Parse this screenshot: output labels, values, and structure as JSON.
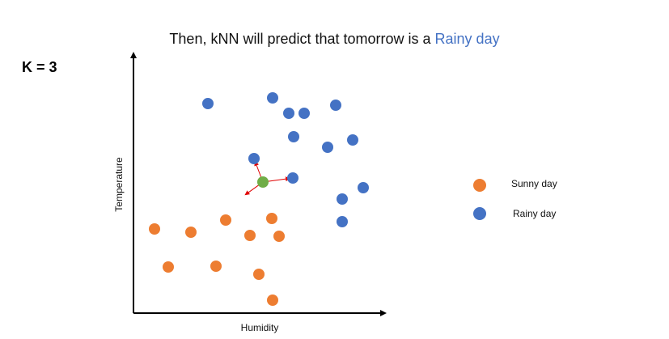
{
  "title": {
    "prefix": "Then, kNN will predict that tomorrow is a ",
    "highlight": "Rainy day",
    "highlight_color": "#4472c4"
  },
  "k_label": "K = 3",
  "chart_data": {
    "type": "scatter",
    "xlabel": "Humidity",
    "ylabel": "Temperature",
    "xlim": [
      0,
      310
    ],
    "ylim": [
      0,
      320
    ],
    "grid": false,
    "legend_placement": "right",
    "series": [
      {
        "name": "Sunny day",
        "color": "#ed7d31",
        "points": [
          [
            26,
            104
          ],
          [
            71,
            100
          ],
          [
            43,
            57
          ],
          [
            102,
            58
          ],
          [
            114,
            115
          ],
          [
            144,
            96
          ],
          [
            155,
            48
          ],
          [
            171,
            117
          ],
          [
            180,
            95
          ],
          [
            172,
            16
          ]
        ]
      },
      {
        "name": "Rainy day",
        "color": "#4472c4",
        "points": [
          [
            92,
            259
          ],
          [
            172,
            266
          ],
          [
            192,
            247
          ],
          [
            211,
            247
          ],
          [
            250,
            257
          ],
          [
            198,
            218
          ],
          [
            240,
            205
          ],
          [
            271,
            214
          ],
          [
            149,
            191
          ],
          [
            197,
            167
          ],
          [
            258,
            141
          ],
          [
            284,
            155
          ],
          [
            258,
            113
          ]
        ]
      }
    ],
    "query_point": {
      "x": 160,
      "y": 162,
      "color": "#70ad47"
    },
    "neighbors": [
      [
        149,
        191
      ],
      [
        197,
        167
      ],
      [
        135,
        144
      ]
    ],
    "neighbor_line_color": "#e00000"
  }
}
